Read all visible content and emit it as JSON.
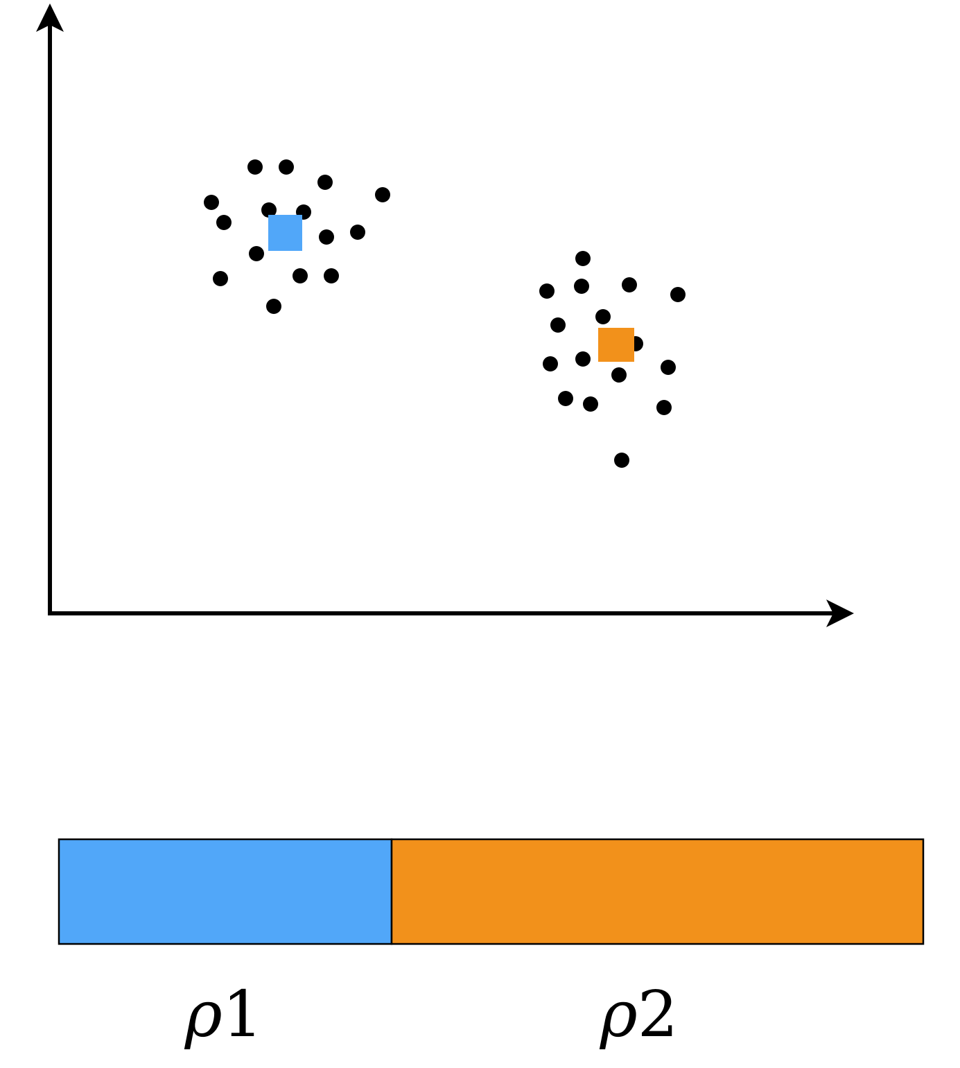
{
  "labels": [
    {
      "symbol": "ρ",
      "subscript": "1"
    },
    {
      "symbol": "ρ",
      "subscript": "2"
    }
  ]
}
